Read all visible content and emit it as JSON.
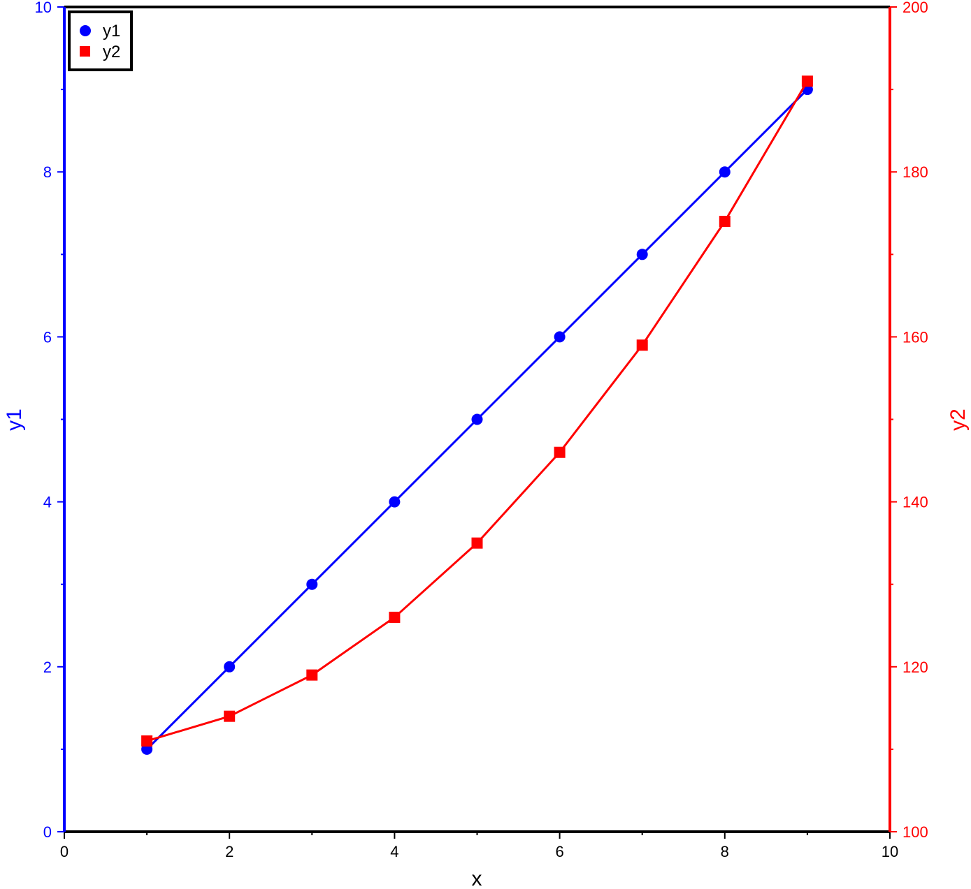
{
  "chart_data": {
    "type": "line",
    "xlabel": "x",
    "y1label": "y1",
    "y2label": "y2",
    "xlim": [
      0,
      10
    ],
    "y1lim": [
      0,
      10
    ],
    "y2lim": [
      100,
      200
    ],
    "x_ticks": [
      "0",
      "2",
      "4",
      "6",
      "8",
      "10"
    ],
    "y1_ticks": [
      "0",
      "2",
      "4",
      "6",
      "8",
      "10"
    ],
    "y2_ticks": [
      "100",
      "120",
      "140",
      "160",
      "180",
      "200"
    ],
    "grid": false,
    "legend_position": "top-left",
    "x": [
      1,
      2,
      3,
      4,
      5,
      6,
      7,
      8,
      9
    ],
    "series": [
      {
        "name": "y1",
        "axis": "left",
        "marker": "circle",
        "color": "#0000ff",
        "values": [
          1,
          2,
          3,
          4,
          5,
          6,
          7,
          8,
          9
        ]
      },
      {
        "name": "y2",
        "axis": "right",
        "marker": "square",
        "color": "#ff0000",
        "values": [
          111,
          114,
          119,
          126,
          135,
          146,
          159,
          174,
          191
        ]
      }
    ]
  }
}
